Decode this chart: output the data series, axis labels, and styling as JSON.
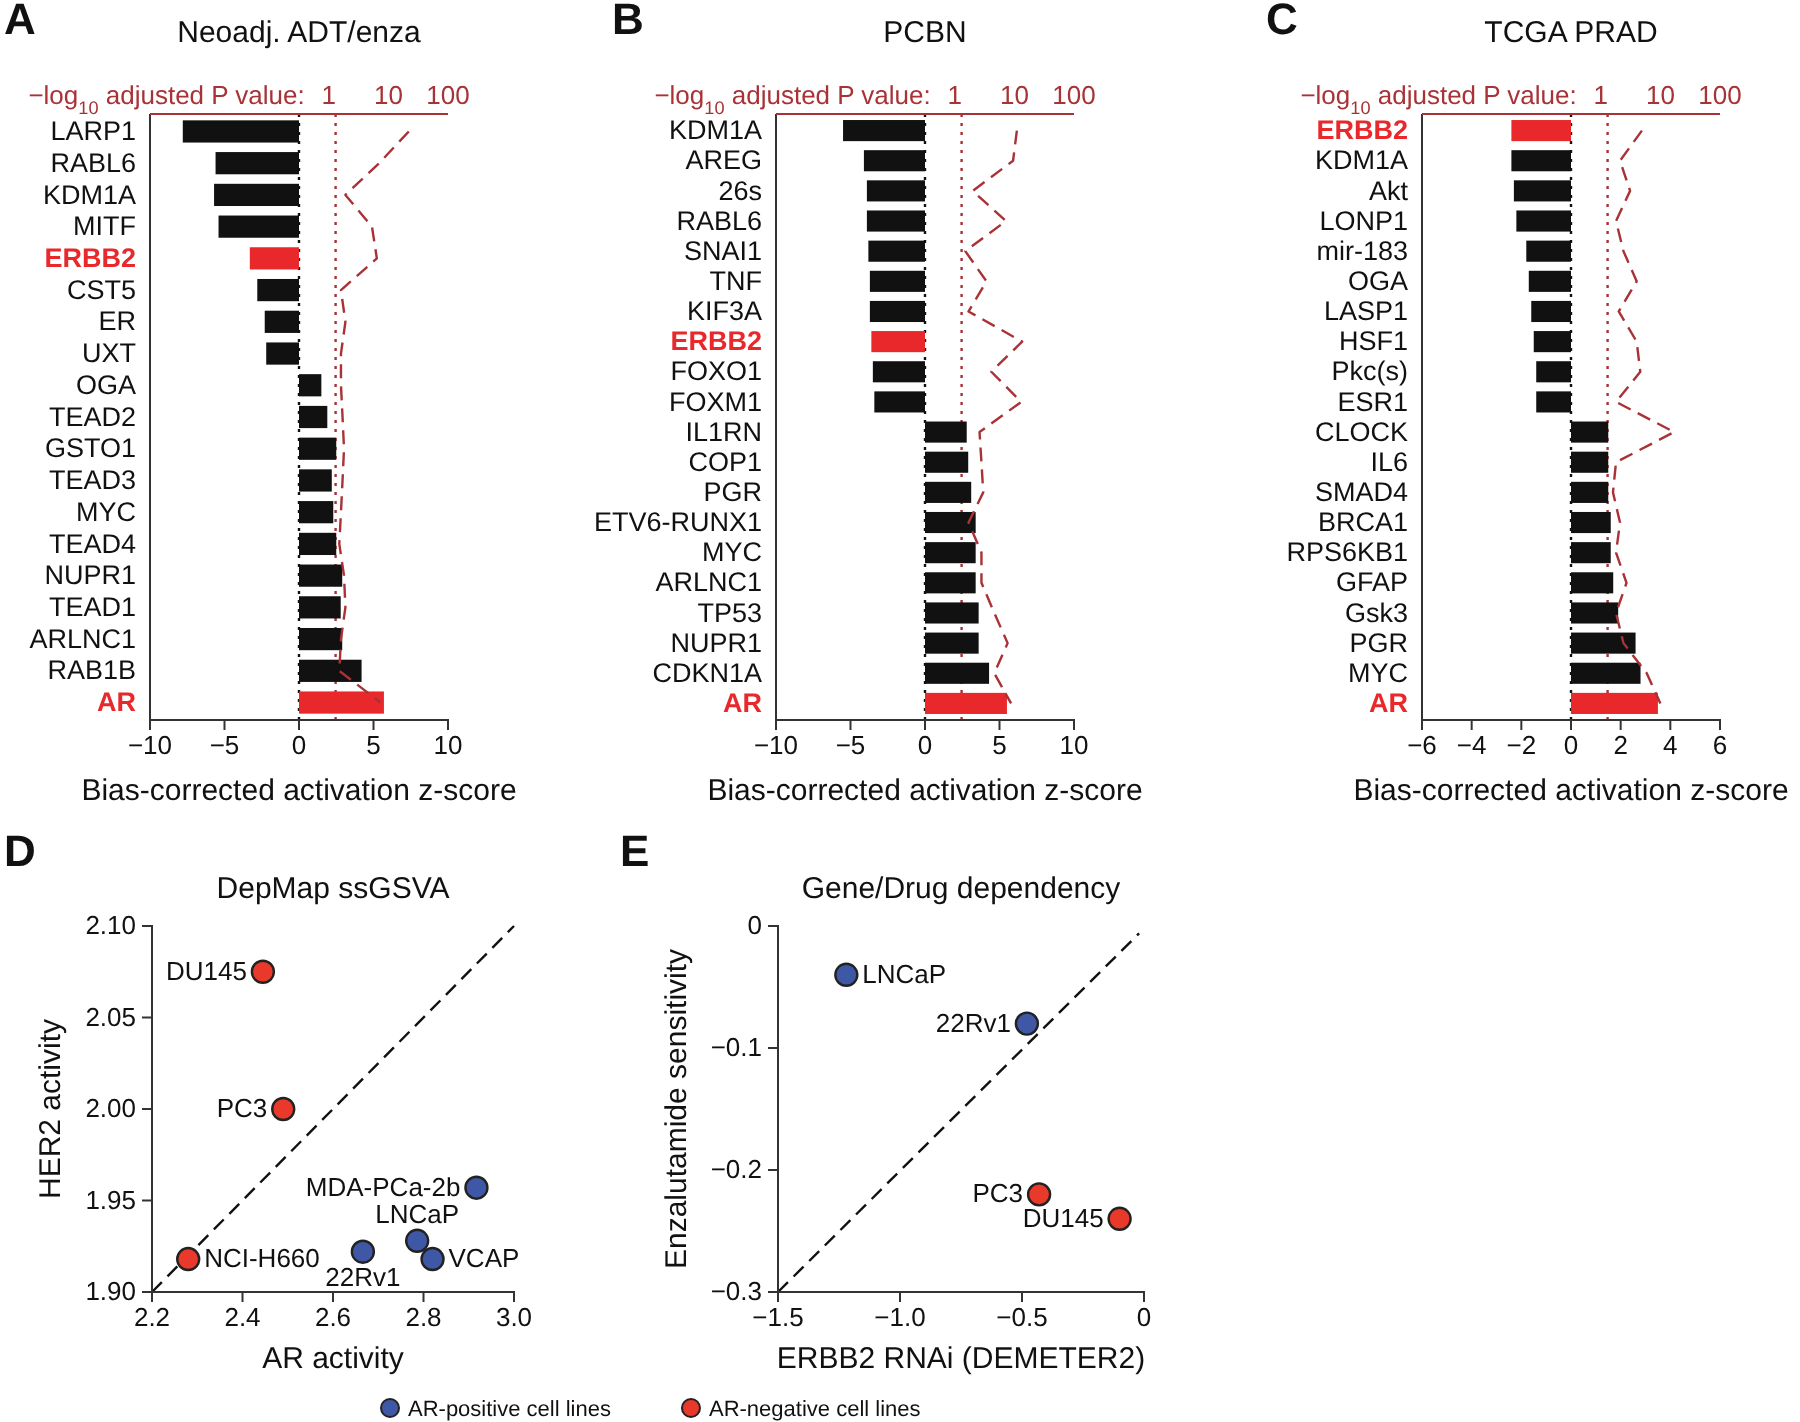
{
  "chart_data": [
    {
      "type": "bar",
      "orientation": "horizontal",
      "title": "Neoadj. ADT/enza",
      "xlabel": "Bias-corrected activation z-score",
      "x2label": "−log$_{10}$ adjusted P value:",
      "annotations": [
        "A"
      ],
      "categories": [
        "LARP1",
        "RABL6",
        "KDM1A",
        "MITF",
        "ERBB2",
        "CST5",
        "ER",
        "UXT",
        "OGA",
        "TEAD2",
        "GSTO1",
        "TEAD3",
        "MYC",
        "TEAD4",
        "NUPR1",
        "TEAD1",
        "ARLNC1",
        "RAB1B",
        "AR"
      ],
      "series": [
        {
          "type": "bar",
          "colors": [
            "#111111",
            "#111111",
            "#111111",
            "#111111",
            "#e8282b",
            "#111111",
            "#111111",
            "#111111",
            "#111111",
            "#111111",
            "#111111",
            "#111111",
            "#111111",
            "#111111",
            "#111111",
            "#111111",
            "#111111",
            "#111111",
            "#e8282b"
          ],
          "values": [
            -7.8,
            -5.6,
            -5.7,
            -5.4,
            -3.3,
            -2.8,
            -2.3,
            -2.2,
            1.5,
            1.9,
            2.5,
            2.2,
            2.3,
            2.5,
            2.9,
            2.8,
            2.9,
            4.2,
            5.7
          ]
        },
        {
          "type": "line",
          "axis": "x2",
          "color": "#a83236",
          "line_style": "dashed",
          "values": [
            22,
            7,
            1.9,
            5.3,
            6.4,
            1.6,
            1.9,
            1.6,
            1.6,
            1.7,
            1.8,
            1.7,
            1.6,
            1.5,
            1.8,
            1.9,
            1.6,
            1.5,
            7.4
          ]
        }
      ],
      "xlim": [
        -10,
        10
      ],
      "xticks": [
        {
          "value": -10,
          "label": "−10"
        },
        {
          "value": -5,
          "label": "−5"
        },
        0,
        5,
        10
      ],
      "x2lim": [
        0.001,
        100
      ],
      "x2ticks": [
        1,
        10,
        100
      ],
      "log": "x2",
      "ref_lines": [
        {
          "axis": "x",
          "value": 0,
          "color": "#111111",
          "line_style": "dotted"
        },
        {
          "axis": "x2",
          "value": 1.3,
          "color": "#a83236",
          "line_style": "dotted"
        }
      ]
    },
    {
      "type": "bar",
      "orientation": "horizontal",
      "title": "PCBN",
      "xlabel": "Bias-corrected activation z-score",
      "x2label": "−log$_{10}$ adjusted P value:",
      "annotations": [
        "B"
      ],
      "categories": [
        "KDM1A",
        "AREG",
        "26s",
        "RABL6",
        "SNAI1",
        "TNF",
        "KIF3A",
        "ERBB2",
        "FOXO1",
        "FOXM1",
        "IL1RN",
        "COP1",
        "PGR",
        "ETV6-RUNX1",
        "MYC",
        "ARLNC1",
        "TP53",
        "NUPR1",
        "CDKN1A",
        "AR"
      ],
      "series": [
        {
          "type": "bar",
          "colors": [
            "#111111",
            "#111111",
            "#111111",
            "#111111",
            "#111111",
            "#111111",
            "#111111",
            "#e8282b",
            "#111111",
            "#111111",
            "#111111",
            "#111111",
            "#111111",
            "#111111",
            "#111111",
            "#111111",
            "#111111",
            "#111111",
            "#111111",
            "#e8282b"
          ],
          "values": [
            -5.5,
            -4.1,
            -3.9,
            -3.9,
            -3.8,
            -3.7,
            -3.7,
            -3.6,
            -3.5,
            -3.4,
            2.8,
            2.9,
            3.1,
            3.4,
            3.4,
            3.4,
            3.6,
            3.6,
            4.3,
            5.5
          ]
        },
        {
          "type": "line",
          "axis": "x2",
          "color": "#a83236",
          "line_style": "dashed",
          "values": [
            11,
            9.5,
            2,
            7.2,
            1.5,
            3.4,
            1.7,
            13.5,
            4.1,
            13,
            2.6,
            2.8,
            3,
            1.7,
            2.8,
            2.8,
            4.6,
            7.7,
            4.6,
            8.8
          ]
        }
      ],
      "xlim": [
        -10,
        10
      ],
      "xticks": [
        {
          "value": -10,
          "label": "−10"
        },
        {
          "value": -5,
          "label": "−5"
        },
        0,
        5,
        10
      ],
      "x2lim": [
        0.001,
        100
      ],
      "x2ticks": [
        1,
        10,
        100
      ],
      "log": "x2",
      "ref_lines": [
        {
          "axis": "x",
          "value": 0,
          "color": "#111111",
          "line_style": "dotted"
        },
        {
          "axis": "x2",
          "value": 1.3,
          "color": "#a83236",
          "line_style": "dotted"
        }
      ]
    },
    {
      "type": "bar",
      "orientation": "horizontal",
      "title": "TCGA PRAD",
      "xlabel": "Bias-corrected activation z-score",
      "x2label": "−log$_{10}$ adjusted P value:",
      "annotations": [
        "C"
      ],
      "categories": [
        "ERBB2",
        "KDM1A",
        "Akt",
        "LONP1",
        "mir-183",
        "OGA",
        "LASP1",
        "HSF1",
        "Pkc(s)",
        "ESR1",
        "CLOCK",
        "IL6",
        "SMAD4",
        "BRCA1",
        "RPS6KB1",
        "GFAP",
        "Gsk3",
        "PGR",
        "MYC",
        "AR"
      ],
      "series": [
        {
          "type": "bar",
          "colors": [
            "#e8282b",
            "#111111",
            "#111111",
            "#111111",
            "#111111",
            "#111111",
            "#111111",
            "#111111",
            "#111111",
            "#111111",
            "#111111",
            "#111111",
            "#111111",
            "#111111",
            "#111111",
            "#111111",
            "#111111",
            "#111111",
            "#111111",
            "#e8282b"
          ],
          "values": [
            -2.4,
            -2.4,
            -2.3,
            -2.2,
            -1.8,
            -1.7,
            -1.6,
            -1.5,
            -1.4,
            -1.4,
            1.5,
            1.5,
            1.5,
            1.6,
            1.6,
            1.7,
            1.9,
            2.6,
            2.8,
            3.5
          ]
        },
        {
          "type": "line",
          "axis": "x2",
          "color": "#a83236",
          "line_style": "dashed",
          "values": [
            4.9,
            2.1,
            3.1,
            1.8,
            2.4,
            4,
            2,
            4,
            4.6,
            1.8,
            17,
            1.8,
            1.6,
            2.1,
            1.8,
            2.7,
            1.8,
            2.4,
            5.9,
            10
          ]
        }
      ],
      "xlim": [
        -6,
        6
      ],
      "xticks": [
        {
          "value": -6,
          "label": "−6"
        },
        {
          "value": -4,
          "label": "−4"
        },
        {
          "value": -2,
          "label": "−2"
        },
        0,
        2,
        4,
        6
      ],
      "x2lim": [
        0.001,
        100
      ],
      "x2ticks": [
        1,
        10,
        100
      ],
      "log": "x2",
      "ref_lines": [
        {
          "axis": "x",
          "value": 0,
          "color": "#111111",
          "line_style": "dotted"
        },
        {
          "axis": "x2",
          "value": 1.3,
          "color": "#a83236",
          "line_style": "dotted"
        }
      ]
    },
    {
      "type": "scatter",
      "title": "DepMap ssGSVA",
      "xlabel": "AR activity",
      "ylabel": "HER2 activity",
      "legend": "bottom",
      "annotations": [
        "D",
        {
          "text": "DU145",
          "x": 2.445,
          "y": 2.075
        },
        {
          "text": "PC3",
          "x": 2.49,
          "y": 2.0
        },
        {
          "text": "NCI-H660",
          "x": 2.28,
          "y": 1.918
        },
        {
          "text": "MDA-PCa-2b",
          "x": 2.917,
          "y": 1.957
        },
        {
          "text": "LNCaP",
          "x": 2.786,
          "y": 1.928
        },
        {
          "text": "VCAP",
          "x": 2.82,
          "y": 1.918
        },
        {
          "text": "22Rv1",
          "x": 2.666,
          "y": 1.922
        }
      ],
      "series": [
        {
          "type": "line",
          "color": "#111111",
          "line_style": "dashed",
          "x": [
            2.2,
            3.0
          ],
          "values": [
            1.9,
            2.1
          ]
        },
        {
          "type": "scatter",
          "name": "AR-positive cell lines",
          "color": "#3f58a6",
          "marker": "circle",
          "x": [
            2.917,
            2.786,
            2.82,
            2.666
          ],
          "values": [
            1.957,
            1.928,
            1.918,
            1.922
          ]
        },
        {
          "type": "scatter",
          "name": "AR-negative cell lines",
          "color": "#e8392a",
          "marker": "circle",
          "x": [
            2.445,
            2.49,
            2.28
          ],
          "values": [
            2.075,
            2.0,
            1.918
          ]
        }
      ],
      "xlim": [
        2.2,
        3.0
      ],
      "xticks": [
        2.2,
        2.4,
        2.6,
        2.8,
        {
          "value": 3.0,
          "label": "3.0"
        }
      ],
      "ylim": [
        1.9,
        2.1
      ],
      "yticks": [
        {
          "value": 1.9,
          "label": "1.90"
        },
        1.95,
        {
          "value": 2.0,
          "label": "2.00"
        },
        2.05,
        {
          "value": 2.1,
          "label": "2.10"
        }
      ]
    },
    {
      "type": "scatter",
      "title": "Gene/Drug dependency",
      "xlabel": "ERBB2 RNAi (DEMETER2)",
      "ylabel": "Enzalutamide sensitivity",
      "annotations": [
        "E",
        {
          "text": "LNCaP",
          "x": -1.22,
          "y": -0.04
        },
        {
          "text": "22Rv1",
          "x": -0.48,
          "y": -0.08
        },
        {
          "text": "PC3",
          "x": -0.43,
          "y": -0.22
        },
        {
          "text": "DU145",
          "x": -0.1,
          "y": -0.24
        }
      ],
      "series": [
        {
          "type": "line",
          "color": "#111111",
          "line_style": "dashed",
          "x": [
            -1.5,
            -0.02
          ],
          "values": [
            -0.3,
            -0.006
          ]
        },
        {
          "type": "scatter",
          "color": "#3f58a6",
          "marker": "circle",
          "x": [
            -1.22,
            -0.48
          ],
          "values": [
            -0.04,
            -0.08
          ]
        },
        {
          "type": "scatter",
          "color": "#e8392a",
          "marker": "circle",
          "x": [
            -0.43,
            -0.1
          ],
          "values": [
            -0.22,
            -0.24
          ]
        }
      ],
      "xlim": [
        -1.5,
        0
      ],
      "xticks": [
        {
          "value": -1.5,
          "label": "−1.5"
        },
        {
          "value": -1,
          "label": "−1.0"
        },
        {
          "value": -0.5,
          "label": "−0.5"
        },
        0
      ],
      "ylim": [
        -0.3,
        0
      ],
      "yticks": [
        {
          "value": -0.3,
          "label": "−0.3"
        },
        {
          "value": -0.2,
          "label": "−0.2"
        },
        {
          "value": -0.1,
          "label": "−0.1"
        },
        0
      ]
    }
  ]
}
